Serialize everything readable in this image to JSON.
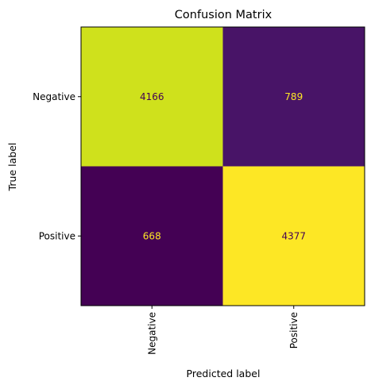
{
  "chart_data": {
    "type": "heatmap",
    "title": "Confusion Matrix",
    "xlabel": "Predicted label",
    "ylabel": "True label",
    "x_categories": [
      "Negative",
      "Positive"
    ],
    "y_categories": [
      "Negative",
      "Positive"
    ],
    "values": [
      [
        4166,
        789
      ],
      [
        668,
        4377
      ]
    ],
    "colormap": "viridis",
    "value_range": [
      668,
      4377
    ],
    "cell_colors": [
      [
        "#cfe11c",
        "#481467"
      ],
      [
        "#440154",
        "#fde725"
      ]
    ],
    "text_colors": [
      [
        "#440154",
        "#fde725"
      ],
      [
        "#fde725",
        "#440154"
      ]
    ],
    "grid": false,
    "colorbar": false
  }
}
